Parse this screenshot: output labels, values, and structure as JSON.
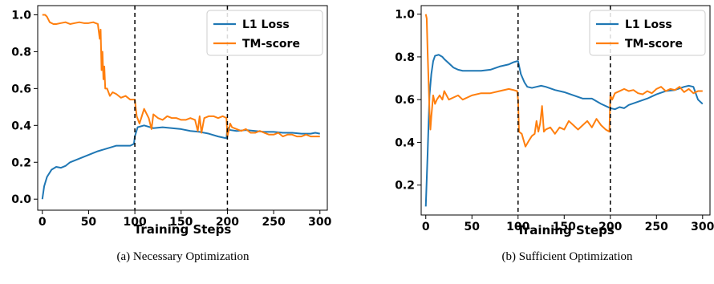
{
  "chart_data": [
    {
      "type": "line",
      "caption": "(a) Necessary Optimization",
      "xlabel": "Training Steps",
      "ylabel": "",
      "xlim": [
        -5,
        308
      ],
      "ylim": [
        -0.06,
        1.05
      ],
      "xticks": [
        0,
        50,
        100,
        150,
        200,
        250,
        300
      ],
      "xtick_labels": [
        "0",
        "50",
        "100",
        "150",
        "200",
        "250",
        "300"
      ],
      "yticks": [
        0.0,
        0.2,
        0.4,
        0.6,
        0.8,
        1.0
      ],
      "ytick_labels": [
        "0.0",
        "0.2",
        "0.4",
        "0.6",
        "0.8",
        "1.0"
      ],
      "vlines": [
        100,
        200
      ],
      "legend_position": "top-right",
      "series": [
        {
          "name": "L1 Loss",
          "color": "#1f77b4",
          "x": [
            0,
            2,
            5,
            10,
            15,
            20,
            25,
            30,
            40,
            50,
            60,
            70,
            80,
            90,
            95,
            99,
            100,
            103,
            110,
            120,
            130,
            140,
            150,
            160,
            170,
            180,
            190,
            199,
            200,
            203,
            210,
            220,
            230,
            240,
            250,
            260,
            270,
            280,
            290,
            295,
            300
          ],
          "values": [
            0.0,
            0.07,
            0.12,
            0.16,
            0.175,
            0.17,
            0.18,
            0.2,
            0.22,
            0.24,
            0.26,
            0.275,
            0.29,
            0.29,
            0.29,
            0.3,
            0.34,
            0.39,
            0.4,
            0.385,
            0.39,
            0.385,
            0.38,
            0.37,
            0.365,
            0.355,
            0.34,
            0.33,
            0.39,
            0.375,
            0.37,
            0.375,
            0.37,
            0.365,
            0.365,
            0.36,
            0.36,
            0.355,
            0.355,
            0.36,
            0.355
          ]
        },
        {
          "name": "TM-score",
          "color": "#ff7f0e",
          "x": [
            0,
            3,
            5,
            8,
            12,
            15,
            20,
            25,
            30,
            35,
            40,
            45,
            50,
            55,
            60,
            62,
            63,
            64,
            65,
            66,
            67,
            68,
            70,
            73,
            76,
            80,
            85,
            90,
            95,
            100,
            102,
            105,
            110,
            115,
            118,
            120,
            125,
            130,
            135,
            140,
            145,
            150,
            155,
            160,
            165,
            168,
            170,
            172,
            175,
            180,
            185,
            190,
            195,
            199,
            200,
            203,
            205,
            210,
            215,
            220,
            225,
            230,
            235,
            240,
            245,
            250,
            255,
            260,
            265,
            270,
            275,
            280,
            285,
            290,
            295,
            300
          ],
          "values": [
            1.0,
            1.0,
            0.99,
            0.96,
            0.95,
            0.95,
            0.955,
            0.96,
            0.95,
            0.955,
            0.96,
            0.955,
            0.955,
            0.96,
            0.95,
            0.87,
            0.92,
            0.7,
            0.8,
            0.65,
            0.72,
            0.6,
            0.6,
            0.56,
            0.58,
            0.57,
            0.55,
            0.56,
            0.54,
            0.54,
            0.45,
            0.41,
            0.49,
            0.44,
            0.38,
            0.46,
            0.44,
            0.43,
            0.45,
            0.44,
            0.44,
            0.43,
            0.43,
            0.44,
            0.43,
            0.37,
            0.45,
            0.36,
            0.44,
            0.45,
            0.45,
            0.44,
            0.45,
            0.44,
            0.34,
            0.41,
            0.39,
            0.38,
            0.37,
            0.38,
            0.36,
            0.36,
            0.37,
            0.36,
            0.35,
            0.35,
            0.36,
            0.34,
            0.35,
            0.35,
            0.34,
            0.34,
            0.35,
            0.34,
            0.34,
            0.34
          ]
        }
      ]
    },
    {
      "type": "line",
      "caption": "(b) Sufficient Optimization",
      "xlabel": "Training Steps",
      "ylabel": "",
      "xlim": [
        -5,
        308
      ],
      "ylim": [
        0.06,
        1.04
      ],
      "xticks": [
        0,
        50,
        100,
        150,
        200,
        250,
        300
      ],
      "xtick_labels": [
        "0",
        "50",
        "100",
        "150",
        "200",
        "250",
        "300"
      ],
      "yticks": [
        0.2,
        0.4,
        0.6,
        0.8,
        1.0
      ],
      "ytick_labels": [
        "0.2",
        "0.4",
        "0.6",
        "0.8",
        "1.0"
      ],
      "vlines": [
        100,
        200
      ],
      "legend_position": "top-right",
      "series": [
        {
          "name": "L1 Loss",
          "color": "#1f77b4",
          "x": [
            0,
            2,
            4,
            6,
            8,
            10,
            14,
            18,
            20,
            25,
            30,
            35,
            40,
            50,
            60,
            70,
            80,
            90,
            95,
            99,
            100,
            103,
            107,
            110,
            115,
            120,
            125,
            130,
            140,
            150,
            160,
            170,
            180,
            190,
            200,
            205,
            210,
            215,
            220,
            230,
            240,
            250,
            260,
            270,
            280,
            285,
            290,
            295,
            300
          ],
          "values": [
            0.1,
            0.35,
            0.62,
            0.72,
            0.78,
            0.805,
            0.81,
            0.8,
            0.79,
            0.77,
            0.75,
            0.74,
            0.735,
            0.735,
            0.735,
            0.74,
            0.755,
            0.765,
            0.775,
            0.78,
            0.78,
            0.72,
            0.68,
            0.66,
            0.655,
            0.66,
            0.665,
            0.66,
            0.645,
            0.635,
            0.62,
            0.605,
            0.605,
            0.58,
            0.56,
            0.555,
            0.565,
            0.56,
            0.575,
            0.59,
            0.605,
            0.625,
            0.64,
            0.645,
            0.66,
            0.665,
            0.66,
            0.6,
            0.58
          ]
        },
        {
          "name": "TM-score",
          "color": "#ff7f0e",
          "x": [
            0,
            1,
            2,
            4,
            5,
            6,
            8,
            10,
            12,
            15,
            18,
            20,
            25,
            30,
            35,
            40,
            50,
            60,
            70,
            80,
            90,
            95,
            99,
            100,
            101,
            104,
            108,
            112,
            115,
            118,
            120,
            122,
            124,
            126,
            128,
            130,
            135,
            140,
            145,
            150,
            155,
            160,
            165,
            170,
            175,
            180,
            185,
            190,
            195,
            199,
            200,
            202,
            205,
            210,
            215,
            220,
            225,
            230,
            235,
            240,
            245,
            250,
            255,
            260,
            265,
            270,
            275,
            280,
            285,
            290,
            295,
            300
          ],
          "values": [
            1.0,
            0.98,
            0.82,
            0.55,
            0.46,
            0.52,
            0.62,
            0.58,
            0.6,
            0.62,
            0.6,
            0.64,
            0.6,
            0.61,
            0.62,
            0.6,
            0.62,
            0.63,
            0.63,
            0.64,
            0.65,
            0.645,
            0.64,
            0.6,
            0.45,
            0.44,
            0.38,
            0.41,
            0.43,
            0.44,
            0.5,
            0.45,
            0.49,
            0.57,
            0.45,
            0.46,
            0.47,
            0.44,
            0.47,
            0.46,
            0.5,
            0.48,
            0.46,
            0.48,
            0.5,
            0.47,
            0.51,
            0.48,
            0.46,
            0.45,
            0.62,
            0.6,
            0.63,
            0.64,
            0.65,
            0.64,
            0.645,
            0.63,
            0.625,
            0.64,
            0.63,
            0.65,
            0.66,
            0.64,
            0.65,
            0.645,
            0.66,
            0.635,
            0.65,
            0.63,
            0.64,
            0.64
          ]
        }
      ]
    }
  ]
}
